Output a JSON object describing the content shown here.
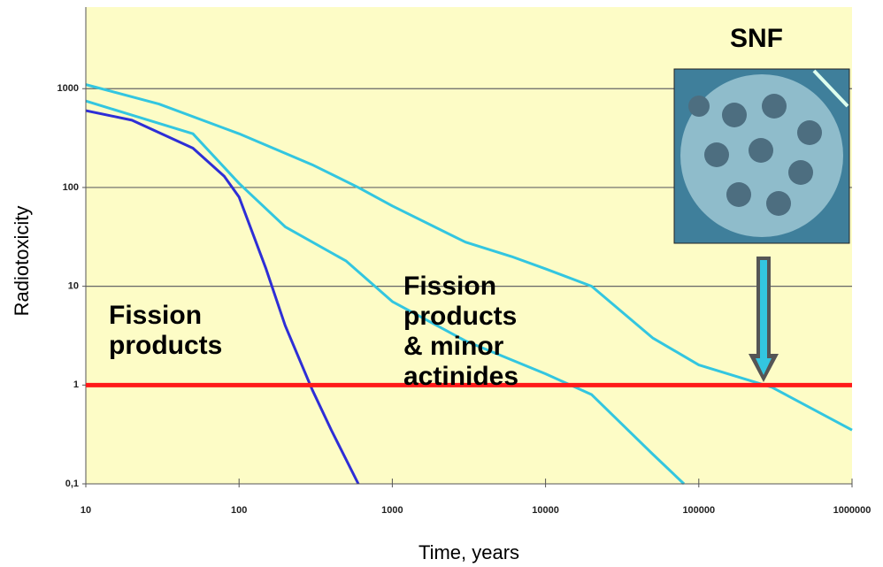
{
  "chart_data": {
    "type": "line",
    "xlabel": "Time, years",
    "ylabel": "Radiotoxicity",
    "log_x": true,
    "log_y": true,
    "xlim": [
      10,
      1000000
    ],
    "ylim": [
      0.1,
      6700
    ],
    "xticks": [
      10,
      100,
      1000,
      10000,
      100000,
      1000000
    ],
    "yticks": [
      {
        "value": 0.1,
        "label": "0,1"
      },
      1,
      10,
      100,
      1000
    ],
    "grid": true,
    "reference_line": {
      "value": 1,
      "color": "#ff1a1a"
    },
    "series": [
      {
        "color": "#2e2ed6",
        "x": [
          10,
          20,
          50,
          80,
          100,
          150,
          200,
          300,
          400,
          600
        ],
        "values": [
          600,
          480,
          250,
          130,
          80,
          15,
          4,
          0.9,
          0.35,
          0.1
        ]
      },
      {
        "color": "#33c6e0",
        "x": [
          10,
          50,
          100,
          200,
          500,
          1000,
          3000,
          10000,
          20000,
          50000,
          80000
        ],
        "values": [
          750,
          350,
          110,
          40,
          18,
          7,
          2.8,
          1.3,
          0.8,
          0.2,
          0.1
        ]
      },
      {
        "color": "#33c6e0",
        "x": [
          10,
          30,
          100,
          300,
          600,
          1000,
          3000,
          6000,
          10000,
          20000,
          50000,
          100000,
          300000,
          1000000
        ],
        "values": [
          1100,
          700,
          350,
          170,
          100,
          65,
          28,
          20,
          15,
          10,
          3,
          1.6,
          0.95,
          0.35
        ]
      }
    ],
    "annotations": [
      {
        "lines": [
          "Fission",
          "products"
        ]
      },
      {
        "lines": [
          "Fission",
          "products",
          "& minor",
          "actinides"
        ]
      },
      {
        "lines": [
          "SNF"
        ]
      }
    ]
  }
}
